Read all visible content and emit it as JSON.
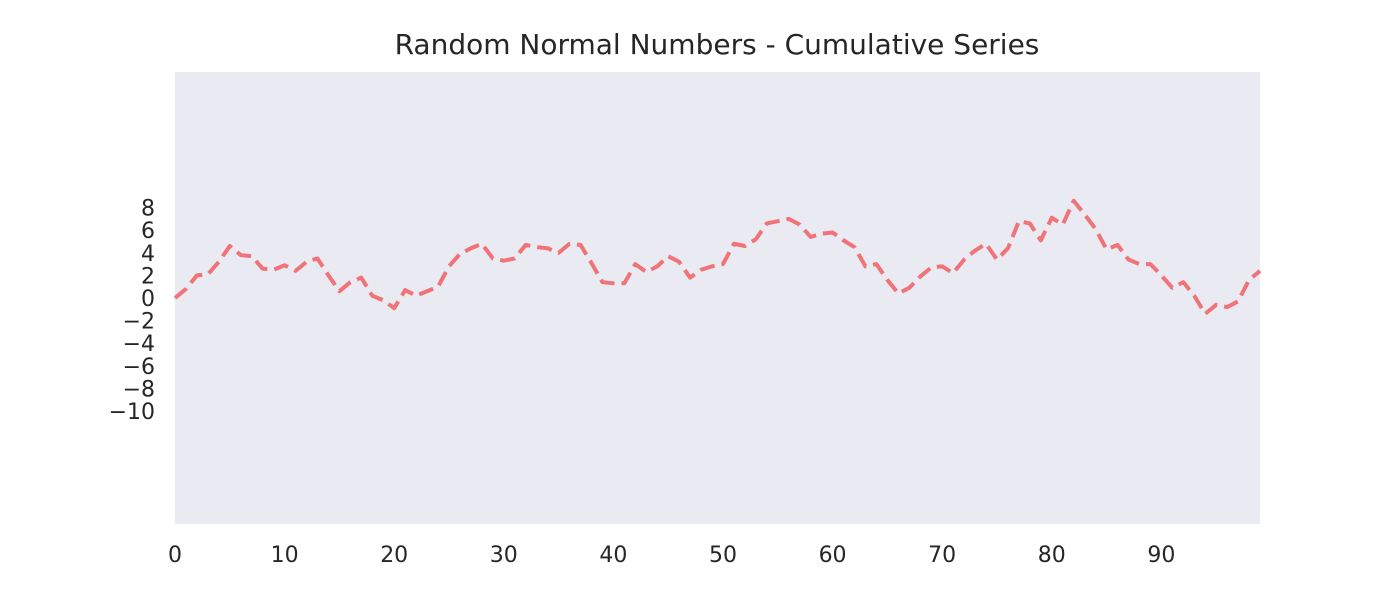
{
  "chart_data": {
    "type": "line",
    "title": "Random Normal Numbers - Cumulative Series",
    "xlabel": "",
    "ylabel": "",
    "xlim": [
      0,
      99
    ],
    "ylim": [
      -20,
      20
    ],
    "x_ticks": [
      0,
      10,
      20,
      30,
      40,
      50,
      60,
      70,
      80,
      90
    ],
    "x_tick_labels": [
      "0",
      "10",
      "20",
      "30",
      "40",
      "50",
      "60",
      "70",
      "80",
      "90"
    ],
    "y_ticks": [
      8,
      6,
      4,
      2,
      0,
      -2,
      -4,
      -6,
      -8,
      -10
    ],
    "y_tick_labels": [
      "8",
      "6",
      "4",
      "2",
      "0",
      "−2",
      "−4",
      "−6",
      "−8",
      "−10"
    ],
    "grid": false,
    "legend": "none",
    "line_style": "dashed",
    "colors": {
      "line": "#f07378",
      "plot_background": "#eaeaf2",
      "text": "#262626"
    },
    "series": [
      {
        "x": [
          0,
          1,
          2,
          3,
          4,
          5,
          6,
          7,
          8,
          9,
          10,
          11,
          12,
          13,
          14,
          15,
          16,
          17,
          18,
          19,
          20,
          21,
          22,
          23,
          24,
          25,
          26,
          27,
          28,
          29,
          30,
          31,
          32,
          33,
          34,
          35,
          36,
          37,
          38,
          39,
          40,
          41,
          42,
          43,
          44,
          45,
          46,
          47,
          48,
          49,
          50,
          51,
          52,
          53,
          54,
          55,
          56,
          57,
          58,
          59,
          60,
          61,
          62,
          63,
          64,
          65,
          66,
          67,
          68,
          69,
          70,
          71,
          72,
          73,
          74,
          75,
          76,
          77,
          78,
          79,
          80,
          81,
          82,
          83,
          84,
          85,
          86,
          87,
          88,
          89,
          90,
          91,
          92,
          93,
          94,
          95,
          96,
          97,
          98,
          99
        ],
        "values": [
          0.0,
          0.8,
          2.0,
          2.1,
          3.2,
          4.6,
          3.8,
          3.7,
          2.6,
          2.5,
          2.9,
          2.4,
          3.2,
          3.5,
          2.0,
          0.6,
          1.4,
          1.8,
          0.2,
          -0.2,
          -0.9,
          0.7,
          0.2,
          0.6,
          1.0,
          2.8,
          3.9,
          4.4,
          4.8,
          3.5,
          3.3,
          3.5,
          4.7,
          4.5,
          4.4,
          4.0,
          4.8,
          4.7,
          3.1,
          1.4,
          1.3,
          1.3,
          3.0,
          2.3,
          2.8,
          3.7,
          3.2,
          1.8,
          2.5,
          2.8,
          3.0,
          4.8,
          4.6,
          5.2,
          6.6,
          6.8,
          7.0,
          6.5,
          5.4,
          5.7,
          5.8,
          5.1,
          4.5,
          2.8,
          3.0,
          1.6,
          0.4,
          0.9,
          1.9,
          2.7,
          2.8,
          2.2,
          3.4,
          4.2,
          4.8,
          3.4,
          4.4,
          6.8,
          6.6,
          5.1,
          7.1,
          6.5,
          8.6,
          7.4,
          6.1,
          4.3,
          4.7,
          3.4,
          3.0,
          3.0,
          2.0,
          0.9,
          1.4,
          0.2,
          -1.4,
          -0.6,
          -0.8,
          -0.3,
          1.6,
          2.4
        ]
      }
    ]
  }
}
